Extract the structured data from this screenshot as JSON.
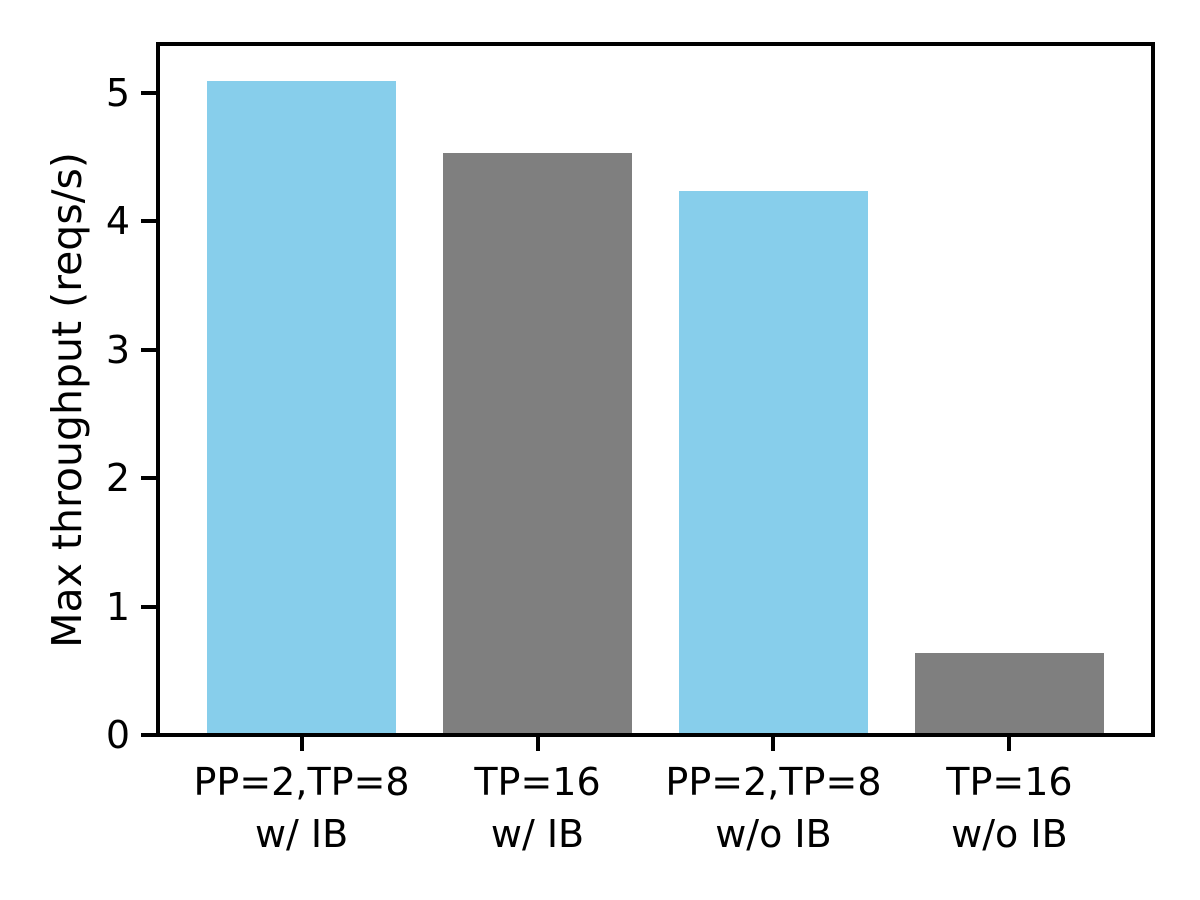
{
  "chart_data": {
    "type": "bar",
    "title": "",
    "xlabel": "",
    "ylabel": "Max throughput (reqs/s)",
    "categories": [
      "PP=2,TP=8\nw/ IB",
      "TP=16\nw/ IB",
      "PP=2,TP=8\nw/o IB",
      "TP=16\nw/o IB"
    ],
    "values": [
      5.09,
      4.53,
      4.24,
      0.64
    ],
    "bar_colors": [
      "#87ceeb",
      "#7f7f7f",
      "#87ceeb",
      "#7f7f7f"
    ],
    "bar_width": 0.8,
    "xlim": [
      -0.6,
      3.6
    ],
    "ylim": [
      0,
      5.35
    ],
    "yticks": [
      0,
      1,
      2,
      3,
      4,
      5
    ],
    "grid": false,
    "legend": null,
    "colors": {
      "bar_blue": "#87ceeb",
      "bar_gray": "#7f7f7f",
      "axis": "#000000",
      "background": "#ffffff"
    }
  }
}
